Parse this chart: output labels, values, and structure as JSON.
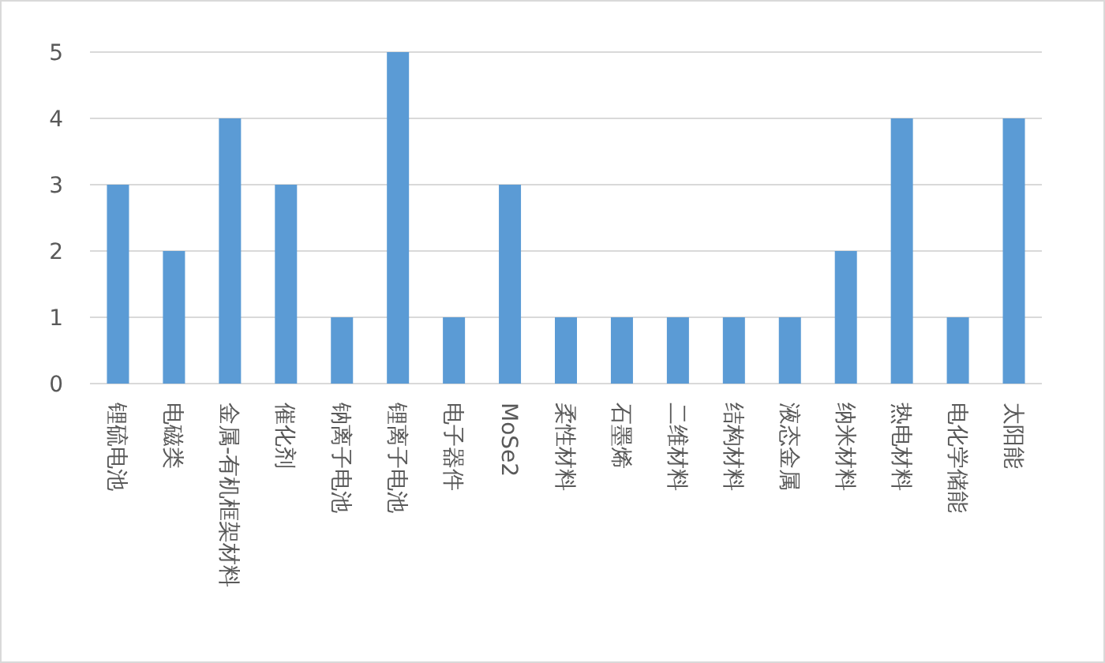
{
  "chart_data": {
    "type": "bar",
    "categories": [
      "锂硫电池",
      "电磁类",
      "金属-有机框架材料",
      "催化剂",
      "钠离子电池",
      "锂离子电池",
      "电子器件",
      "MoSe2",
      "柔性材料",
      "石墨烯",
      "二维材料",
      "结构材料",
      "液态金属",
      "纳米材料",
      "热电材料",
      "电化学储能",
      "太阳能"
    ],
    "values": [
      3,
      2,
      4,
      3,
      1,
      5,
      1,
      3,
      1,
      1,
      1,
      1,
      1,
      2,
      4,
      1,
      4
    ],
    "color": "#5b9bd5",
    "ylim": [
      0,
      5
    ],
    "yticks": [
      0,
      1,
      2,
      3,
      4,
      5
    ],
    "grid": "y"
  }
}
